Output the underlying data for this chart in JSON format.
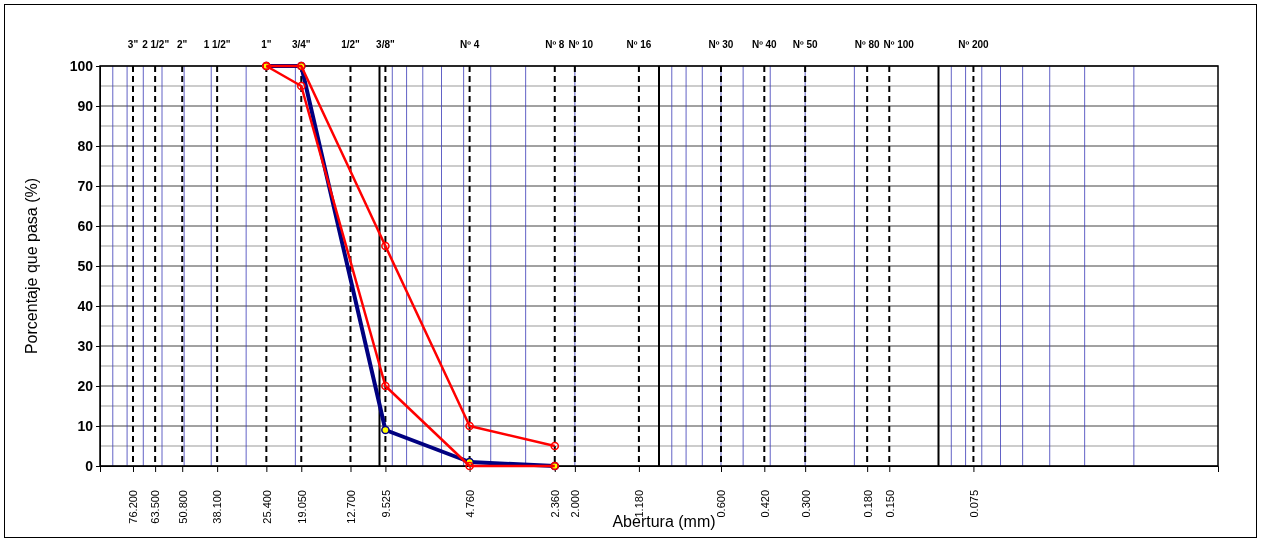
{
  "chart_data": {
    "type": "line",
    "xlabel": "Abertura (mm)",
    "ylabel": "Porcentaje que pasa (%)",
    "log": "x",
    "grid": true,
    "marker": "circle",
    "line_style": "solid",
    "xlim": [
      100,
      0.01
    ],
    "ylim": [
      0,
      100
    ],
    "yticks": [
      0,
      10,
      20,
      30,
      40,
      50,
      60,
      70,
      80,
      90,
      100
    ],
    "xticks": [
      {
        "value": 76.2,
        "label": "76.200"
      },
      {
        "value": 63.5,
        "label": "63.500"
      },
      {
        "value": 50.8,
        "label": "50.800"
      },
      {
        "value": 38.1,
        "label": "38.100"
      },
      {
        "value": 25.4,
        "label": "25.400"
      },
      {
        "value": 19.05,
        "label": "19.050"
      },
      {
        "value": 12.7,
        "label": "12.700"
      },
      {
        "value": 9.525,
        "label": "9.525"
      },
      {
        "value": 4.76,
        "label": "4.760"
      },
      {
        "value": 2.36,
        "label": "2.360"
      },
      {
        "value": 2.0,
        "label": "2.000"
      },
      {
        "value": 1.18,
        "label": "1.180"
      },
      {
        "value": 0.6,
        "label": "0.600"
      },
      {
        "value": 0.42,
        "label": "0.420"
      },
      {
        "value": 0.3,
        "label": "0.300"
      },
      {
        "value": 0.18,
        "label": "0.180"
      },
      {
        "value": 0.15,
        "label": "0.150"
      },
      {
        "value": 0.075,
        "label": "0.075"
      }
    ],
    "annotations": [
      "3\"",
      "2 1/2\"",
      "2\"",
      "1 1/2\"",
      "1\"",
      "3/4\"",
      "1/2\"",
      "3/8\"",
      "Nº 4",
      "Nº 8",
      "Nº 10",
      "Nº 16",
      "Nº 30",
      "Nº 40",
      "Nº 50",
      "Nº 80",
      "Nº 100",
      "Nº 200"
    ],
    "x": [
      25.4,
      19.05,
      9.525,
      4.76,
      2.36
    ],
    "series": [
      {
        "color": "#000080",
        "values": [
          100,
          100,
          9,
          1,
          0
        ]
      },
      {
        "color": "#ff0000",
        "values": [
          100,
          100,
          55,
          10,
          5
        ]
      },
      {
        "color": "#ff0000",
        "values": [
          100,
          95,
          20,
          0,
          0
        ]
      }
    ]
  }
}
